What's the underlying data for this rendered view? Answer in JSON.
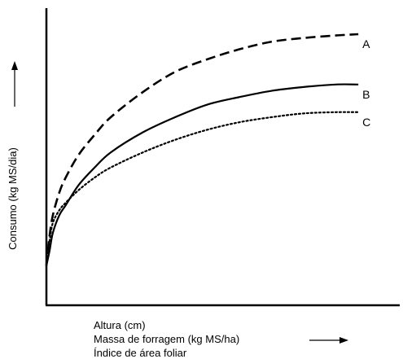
{
  "chart_data": {
    "type": "line",
    "title": "",
    "ylabel": "Consumo (kg MS/dia)",
    "xlabel_lines": [
      "Altura (cm)",
      "Massa de forragem (kg MS/ha)",
      "Índice de área foliar"
    ],
    "xlim": [
      0,
      100
    ],
    "ylim": [
      0,
      100
    ],
    "grid": false,
    "legend": "none",
    "series": [
      {
        "name": "A",
        "style": "dashed",
        "color": "#000000",
        "x": [
          0,
          1,
          2,
          4,
          6,
          10,
          15,
          20,
          30,
          40,
          50,
          60,
          70,
          80,
          90,
          97
        ],
        "y": [
          8,
          20,
          28,
          37,
          43,
          52,
          60,
          67,
          77,
          85,
          90,
          94,
          97,
          98.5,
          99.5,
          100
        ]
      },
      {
        "name": "B",
        "style": "solid",
        "color": "#000000",
        "x": [
          0,
          1,
          2,
          4,
          6,
          10,
          15,
          20,
          30,
          40,
          50,
          60,
          70,
          80,
          90,
          97
        ],
        "y": [
          8,
          14,
          21,
          28,
          32,
          40,
          47,
          53,
          61,
          67,
          72,
          75,
          77.5,
          79,
          80,
          80
        ]
      },
      {
        "name": "C",
        "style": "dotted",
        "color": "#000000",
        "x": [
          0,
          1,
          2,
          4,
          6,
          10,
          15,
          20,
          30,
          40,
          50,
          60,
          70,
          80,
          90,
          97
        ],
        "y": [
          8,
          18,
          25,
          30,
          33,
          38,
          43,
          47,
          53,
          58,
          62,
          65,
          67,
          68.5,
          69,
          69
        ]
      }
    ]
  }
}
